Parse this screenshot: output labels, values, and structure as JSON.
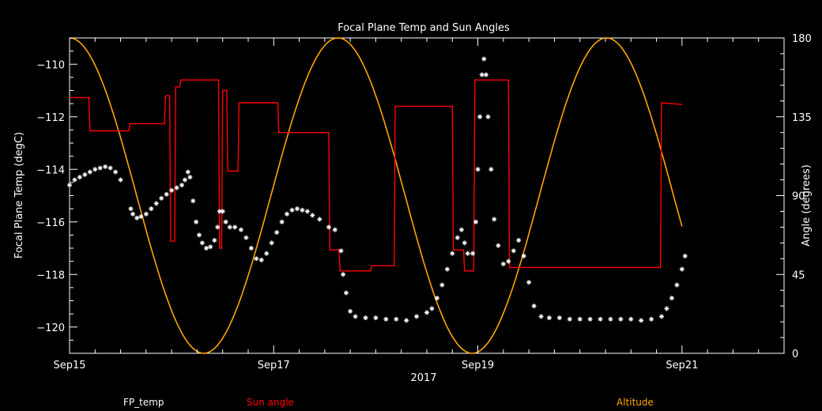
{
  "chart_data": {
    "type": "line",
    "title": "Focal Plane Temp and Sun Angles",
    "xlabel": "2017",
    "ylabel_left": "Focal Plane Temp (degC)",
    "ylabel_right": "Angle (degrees)",
    "x_unit": "days since Sep15",
    "xlim": [
      0,
      7
    ],
    "ylim_left": [
      -121,
      -109
    ],
    "ylim_right": [
      0,
      180
    ],
    "x_ticks": [
      {
        "x": 0,
        "label": "Sep15"
      },
      {
        "x": 2,
        "label": "Sep17"
      },
      {
        "x": 4,
        "label": "Sep19"
      },
      {
        "x": 6,
        "label": "Sep21"
      }
    ],
    "y_ticks_left": [
      -120,
      -118,
      -116,
      -114,
      -112,
      -110
    ],
    "y_ticks_right": [
      0,
      45,
      90,
      135,
      180
    ],
    "grid": false,
    "legend": [
      {
        "name": "FP_temp",
        "color": "#ffffff"
      },
      {
        "name": "Sun angle",
        "color": "#ff0000"
      },
      {
        "name": "Altitude",
        "color": "#ffa500"
      }
    ],
    "series": [
      {
        "name": "FP_temp",
        "axis": "left",
        "style": "star",
        "color": "#ffffff",
        "points": [
          [
            0.0,
            -114.6
          ],
          [
            0.05,
            -114.4
          ],
          [
            0.1,
            -114.3
          ],
          [
            0.15,
            -114.2
          ],
          [
            0.2,
            -114.1
          ],
          [
            0.25,
            -114.0
          ],
          [
            0.3,
            -113.95
          ],
          [
            0.35,
            -113.9
          ],
          [
            0.4,
            -113.95
          ],
          [
            0.45,
            -114.1
          ],
          [
            0.5,
            -114.4
          ],
          [
            0.6,
            -115.5
          ],
          [
            0.62,
            -115.7
          ],
          [
            0.66,
            -115.85
          ],
          [
            0.7,
            -115.8
          ],
          [
            0.75,
            -115.7
          ],
          [
            0.8,
            -115.5
          ],
          [
            0.85,
            -115.3
          ],
          [
            0.9,
            -115.1
          ],
          [
            0.95,
            -114.95
          ],
          [
            1.0,
            -114.8
          ],
          [
            1.05,
            -114.7
          ],
          [
            1.1,
            -114.6
          ],
          [
            1.13,
            -114.4
          ],
          [
            1.16,
            -114.1
          ],
          [
            1.18,
            -114.3
          ],
          [
            1.21,
            -115.2
          ],
          [
            1.24,
            -116.0
          ],
          [
            1.27,
            -116.5
          ],
          [
            1.3,
            -116.8
          ],
          [
            1.34,
            -117.0
          ],
          [
            1.38,
            -116.95
          ],
          [
            1.42,
            -116.7
          ],
          [
            1.45,
            -116.2
          ],
          [
            1.47,
            -115.6
          ],
          [
            1.5,
            -115.6
          ],
          [
            1.53,
            -116.0
          ],
          [
            1.57,
            -116.2
          ],
          [
            1.62,
            -116.2
          ],
          [
            1.68,
            -116.3
          ],
          [
            1.73,
            -116.6
          ],
          [
            1.78,
            -117.0
          ],
          [
            1.83,
            -117.4
          ],
          [
            1.88,
            -117.45
          ],
          [
            1.93,
            -117.2
          ],
          [
            1.98,
            -116.8
          ],
          [
            2.03,
            -116.4
          ],
          [
            2.08,
            -116.0
          ],
          [
            2.13,
            -115.7
          ],
          [
            2.18,
            -115.55
          ],
          [
            2.23,
            -115.5
          ],
          [
            2.28,
            -115.55
          ],
          [
            2.33,
            -115.6
          ],
          [
            2.38,
            -115.75
          ],
          [
            2.45,
            -115.9
          ],
          [
            2.54,
            -116.2
          ],
          [
            2.6,
            -116.3
          ],
          [
            2.66,
            -117.1
          ],
          [
            2.68,
            -118.0
          ],
          [
            2.71,
            -118.7
          ],
          [
            2.75,
            -119.4
          ],
          [
            2.8,
            -119.6
          ],
          [
            2.9,
            -119.65
          ],
          [
            3.0,
            -119.65
          ],
          [
            3.1,
            -119.7
          ],
          [
            3.2,
            -119.7
          ],
          [
            3.3,
            -119.75
          ],
          [
            3.4,
            -119.6
          ],
          [
            3.5,
            -119.45
          ],
          [
            3.55,
            -119.3
          ],
          [
            3.6,
            -118.9
          ],
          [
            3.65,
            -118.4
          ],
          [
            3.7,
            -117.8
          ],
          [
            3.75,
            -117.2
          ],
          [
            3.8,
            -116.6
          ],
          [
            3.84,
            -116.3
          ],
          [
            3.87,
            -116.8
          ],
          [
            3.9,
            -117.2
          ],
          [
            3.95,
            -117.2
          ],
          [
            3.98,
            -116.0
          ],
          [
            4.0,
            -114.0
          ],
          [
            4.02,
            -112.0
          ],
          [
            4.04,
            -110.4
          ],
          [
            4.06,
            -109.8
          ],
          [
            4.08,
            -110.4
          ],
          [
            4.1,
            -112.0
          ],
          [
            4.13,
            -114.0
          ],
          [
            4.16,
            -115.9
          ],
          [
            4.2,
            -116.9
          ],
          [
            4.25,
            -117.6
          ],
          [
            4.3,
            -117.5
          ],
          [
            4.35,
            -117.1
          ],
          [
            4.4,
            -116.7
          ],
          [
            4.45,
            -117.3
          ],
          [
            4.5,
            -118.3
          ],
          [
            4.55,
            -119.2
          ],
          [
            4.62,
            -119.6
          ],
          [
            4.7,
            -119.65
          ],
          [
            4.8,
            -119.65
          ],
          [
            4.9,
            -119.7
          ],
          [
            5.0,
            -119.7
          ],
          [
            5.1,
            -119.7
          ],
          [
            5.2,
            -119.7
          ],
          [
            5.3,
            -119.7
          ],
          [
            5.4,
            -119.7
          ],
          [
            5.5,
            -119.7
          ],
          [
            5.6,
            -119.75
          ],
          [
            5.7,
            -119.7
          ],
          [
            5.8,
            -119.6
          ],
          [
            5.85,
            -119.3
          ],
          [
            5.9,
            -118.9
          ],
          [
            5.95,
            -118.4
          ],
          [
            6.0,
            -117.8
          ],
          [
            6.03,
            -117.3
          ]
        ]
      },
      {
        "name": "Sun angle",
        "axis": "right",
        "style": "step",
        "color": "#ff0000",
        "points": [
          [
            0.0,
            146
          ],
          [
            0.19,
            146
          ],
          [
            0.2,
            127
          ],
          [
            0.58,
            127
          ],
          [
            0.59,
            131
          ],
          [
            0.93,
            131
          ],
          [
            0.94,
            147
          ],
          [
            0.98,
            147
          ],
          [
            0.99,
            64
          ],
          [
            1.03,
            64
          ],
          [
            1.04,
            152
          ],
          [
            1.08,
            152
          ],
          [
            1.09,
            156
          ],
          [
            1.46,
            156
          ],
          [
            1.47,
            60
          ],
          [
            1.49,
            60
          ],
          [
            1.5,
            150
          ],
          [
            1.54,
            150
          ],
          [
            1.55,
            104
          ],
          [
            1.65,
            104
          ],
          [
            1.66,
            143
          ],
          [
            2.04,
            143
          ],
          [
            2.05,
            126
          ],
          [
            2.54,
            126
          ],
          [
            2.55,
            59
          ],
          [
            2.64,
            59
          ],
          [
            2.65,
            47
          ],
          [
            2.95,
            47
          ],
          [
            2.96,
            50
          ],
          [
            3.18,
            50
          ],
          [
            3.19,
            141
          ],
          [
            3.75,
            141
          ],
          [
            3.76,
            59
          ],
          [
            3.86,
            59
          ],
          [
            3.87,
            47
          ],
          [
            3.96,
            47
          ],
          [
            3.97,
            156
          ],
          [
            4.3,
            156
          ],
          [
            4.31,
            49
          ],
          [
            5.79,
            49
          ],
          [
            5.8,
            143
          ],
          [
            6.0,
            142
          ]
        ]
      },
      {
        "name": "Altitude",
        "axis": "right",
        "style": "line",
        "color": "#ffa500",
        "period_days": 2.63,
        "peaks_x": [
          0.0,
          2.62,
          5.25
        ],
        "troughs_x": [
          1.31,
          3.94
        ],
        "range": [
          0,
          180
        ],
        "x_end": 6.0,
        "y_end": 124
      }
    ]
  }
}
